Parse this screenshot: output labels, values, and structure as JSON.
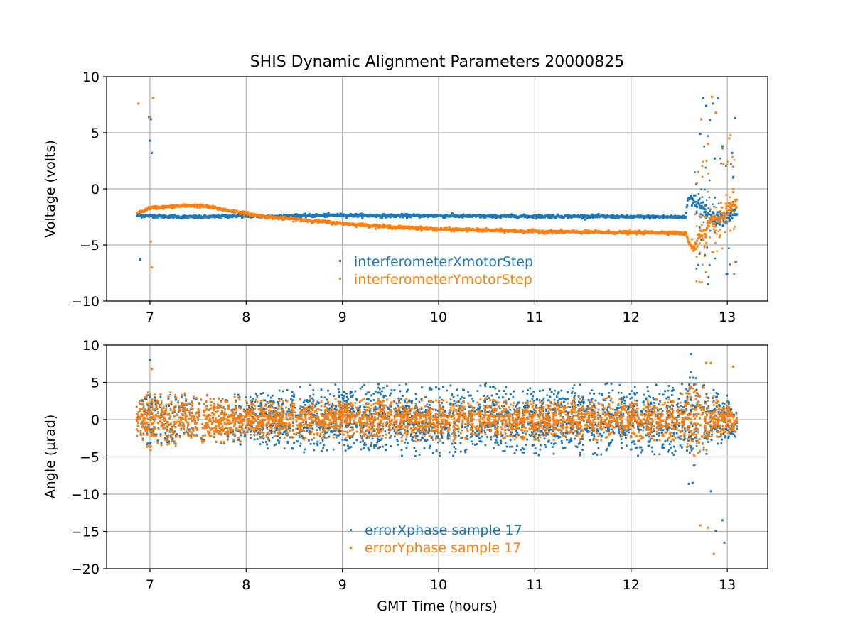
{
  "chart_data": {
    "title": "SHIS Dynamic Alignment Parameters 20000825",
    "xlabel": "GMT Time (hours)",
    "xlim": [
      6.55,
      13.42
    ],
    "xticks": [
      7,
      8,
      9,
      10,
      11,
      12,
      13
    ],
    "xtick_labels": [
      "7",
      "8",
      "9",
      "10",
      "11",
      "12",
      "13"
    ],
    "colors": {
      "blue": "#1f77b4",
      "orange": "#ff7f0e"
    },
    "panels": [
      {
        "type": "scatter",
        "ylabel": "Voltage (volts)",
        "ylim": [
          -10,
          10
        ],
        "yticks": [
          -10,
          -5,
          0,
          5,
          10
        ],
        "ytick_labels": [
          "−10",
          "−5",
          "0",
          "5",
          "10"
        ],
        "grid": true,
        "legend_position": "lower-center",
        "series": [
          {
            "name": "interferometerXmotorStep",
            "color": "#1f77b4",
            "x": [
              6.87,
              7.0,
              7.3,
              7.6,
              7.9,
              8.2,
              8.6,
              8.9,
              9.5,
              10.0,
              10.5,
              11.0,
              11.5,
              12.0,
              12.4,
              12.57,
              12.59,
              12.65,
              12.8,
              13.0,
              13.1
            ],
            "y": [
              -2.4,
              -2.4,
              -2.5,
              -2.5,
              -2.4,
              -2.45,
              -2.4,
              -2.35,
              -2.4,
              -2.4,
              -2.45,
              -2.45,
              -2.45,
              -2.5,
              -2.5,
              -2.5,
              -0.9,
              -0.8,
              -2.4,
              -2.6,
              -2.0
            ],
            "outliers": {
              "x": [
                6.9,
                6.99,
                7.0,
                7.01,
                7.02,
                12.72,
                12.75,
                12.78,
                12.8,
                12.82,
                12.85,
                12.87,
                12.9,
                12.95,
                13.0,
                13.05,
                13.08,
                13.09
              ],
              "y": [
                -6.3,
                6.4,
                4.3,
                6.2,
                3.2,
                4.9,
                8.1,
                7.4,
                -8.5,
                6.1,
                7.6,
                2.7,
                8.1,
                3.8,
                -7.6,
                3.2,
                6.3,
                -6.5
              ]
            }
          },
          {
            "name": "interferometerYmotorStep",
            "color": "#ff7f0e",
            "x": [
              6.87,
              7.0,
              7.2,
              7.4,
              7.5,
              7.6,
              7.8,
              8.0,
              8.2,
              8.5,
              9.0,
              9.5,
              10.0,
              10.5,
              11.0,
              11.5,
              12.0,
              12.4,
              12.57,
              12.6,
              12.65,
              12.75,
              12.85,
              12.95,
              13.05,
              13.1
            ],
            "y": [
              -2.2,
              -1.7,
              -1.6,
              -1.5,
              -1.5,
              -1.6,
              -1.9,
              -2.2,
              -2.5,
              -2.7,
              -3.1,
              -3.4,
              -3.6,
              -3.7,
              -3.8,
              -3.85,
              -3.9,
              -3.9,
              -4.0,
              -4.8,
              -5.2,
              -3.8,
              -3.0,
              -2.4,
              -1.7,
              -1.3
            ],
            "outliers": {
              "x": [
                6.88,
                7.0,
                7.01,
                7.02,
                7.03,
                12.7,
                12.73,
                12.77,
                12.8,
                12.84,
                12.88,
                12.92,
                12.96,
                13.02,
                13.06
              ],
              "y": [
                7.6,
                6.4,
                -4.7,
                -7.0,
                8.1,
                1.5,
                6.2,
                -2.5,
                4.0,
                8.2,
                6.8,
                -4.3,
                2.2,
                4.5,
                -0.3
              ]
            }
          }
        ]
      },
      {
        "type": "scatter",
        "ylabel": "Angle (μrad)",
        "ylim": [
          -20,
          10
        ],
        "yticks": [
          -20,
          -15,
          -10,
          -5,
          0,
          5,
          10
        ],
        "ytick_labels": [
          "−20",
          "−15",
          "−10",
          "−5",
          "0",
          "5",
          "10"
        ],
        "grid": true,
        "legend_position": "lower-center",
        "series": [
          {
            "name": "errorXphase sample 17",
            "color": "#1f77b4",
            "x_range": [
              6.86,
              13.1
            ],
            "center": 0.0,
            "envelope": {
              "x": [
                6.86,
                7.0,
                7.5,
                8.0,
                8.3,
                8.5,
                9.0,
                10.0,
                11.0,
                12.0,
                12.5,
                12.6,
                12.62,
                12.7,
                12.9,
                13.1
              ],
              "amp": [
                2.6,
                4.0,
                3.3,
                3.5,
                4.3,
                4.6,
                4.9,
                4.9,
                4.9,
                4.9,
                4.9,
                5.8,
                8.8,
                5.0,
                4.2,
                2.5
              ]
            },
            "outliers": {
              "x": [
                7.0,
                12.6,
                12.62,
                12.64,
                12.83,
                12.88,
                12.95,
                12.97
              ],
              "y": [
                8.0,
                -8.6,
                8.8,
                -8.5,
                -9.6,
                -15.0,
                -13.5,
                -16.5
              ]
            }
          },
          {
            "name": "errorYphase sample 17",
            "color": "#ff7f0e",
            "x_range": [
              6.86,
              13.1
            ],
            "center": 0.0,
            "envelope": {
              "x": [
                6.86,
                7.0,
                7.5,
                8.0,
                8.3,
                9.0,
                10.0,
                11.0,
                12.0,
                12.5,
                12.62,
                12.7,
                12.9,
                13.1
              ],
              "amp": [
                2.5,
                4.5,
                3.5,
                3.0,
                2.8,
                2.9,
                2.9,
                2.9,
                2.9,
                2.9,
                6.0,
                5.0,
                3.0,
                1.8
              ]
            },
            "outliers": {
              "x": [
                7.02,
                12.72,
                12.78,
                12.8,
                12.83,
                12.86,
                13.06
              ],
              "y": [
                6.8,
                -14.2,
                7.6,
                -14.5,
                7.6,
                -18.0,
                7.1
              ]
            }
          }
        ]
      }
    ]
  }
}
